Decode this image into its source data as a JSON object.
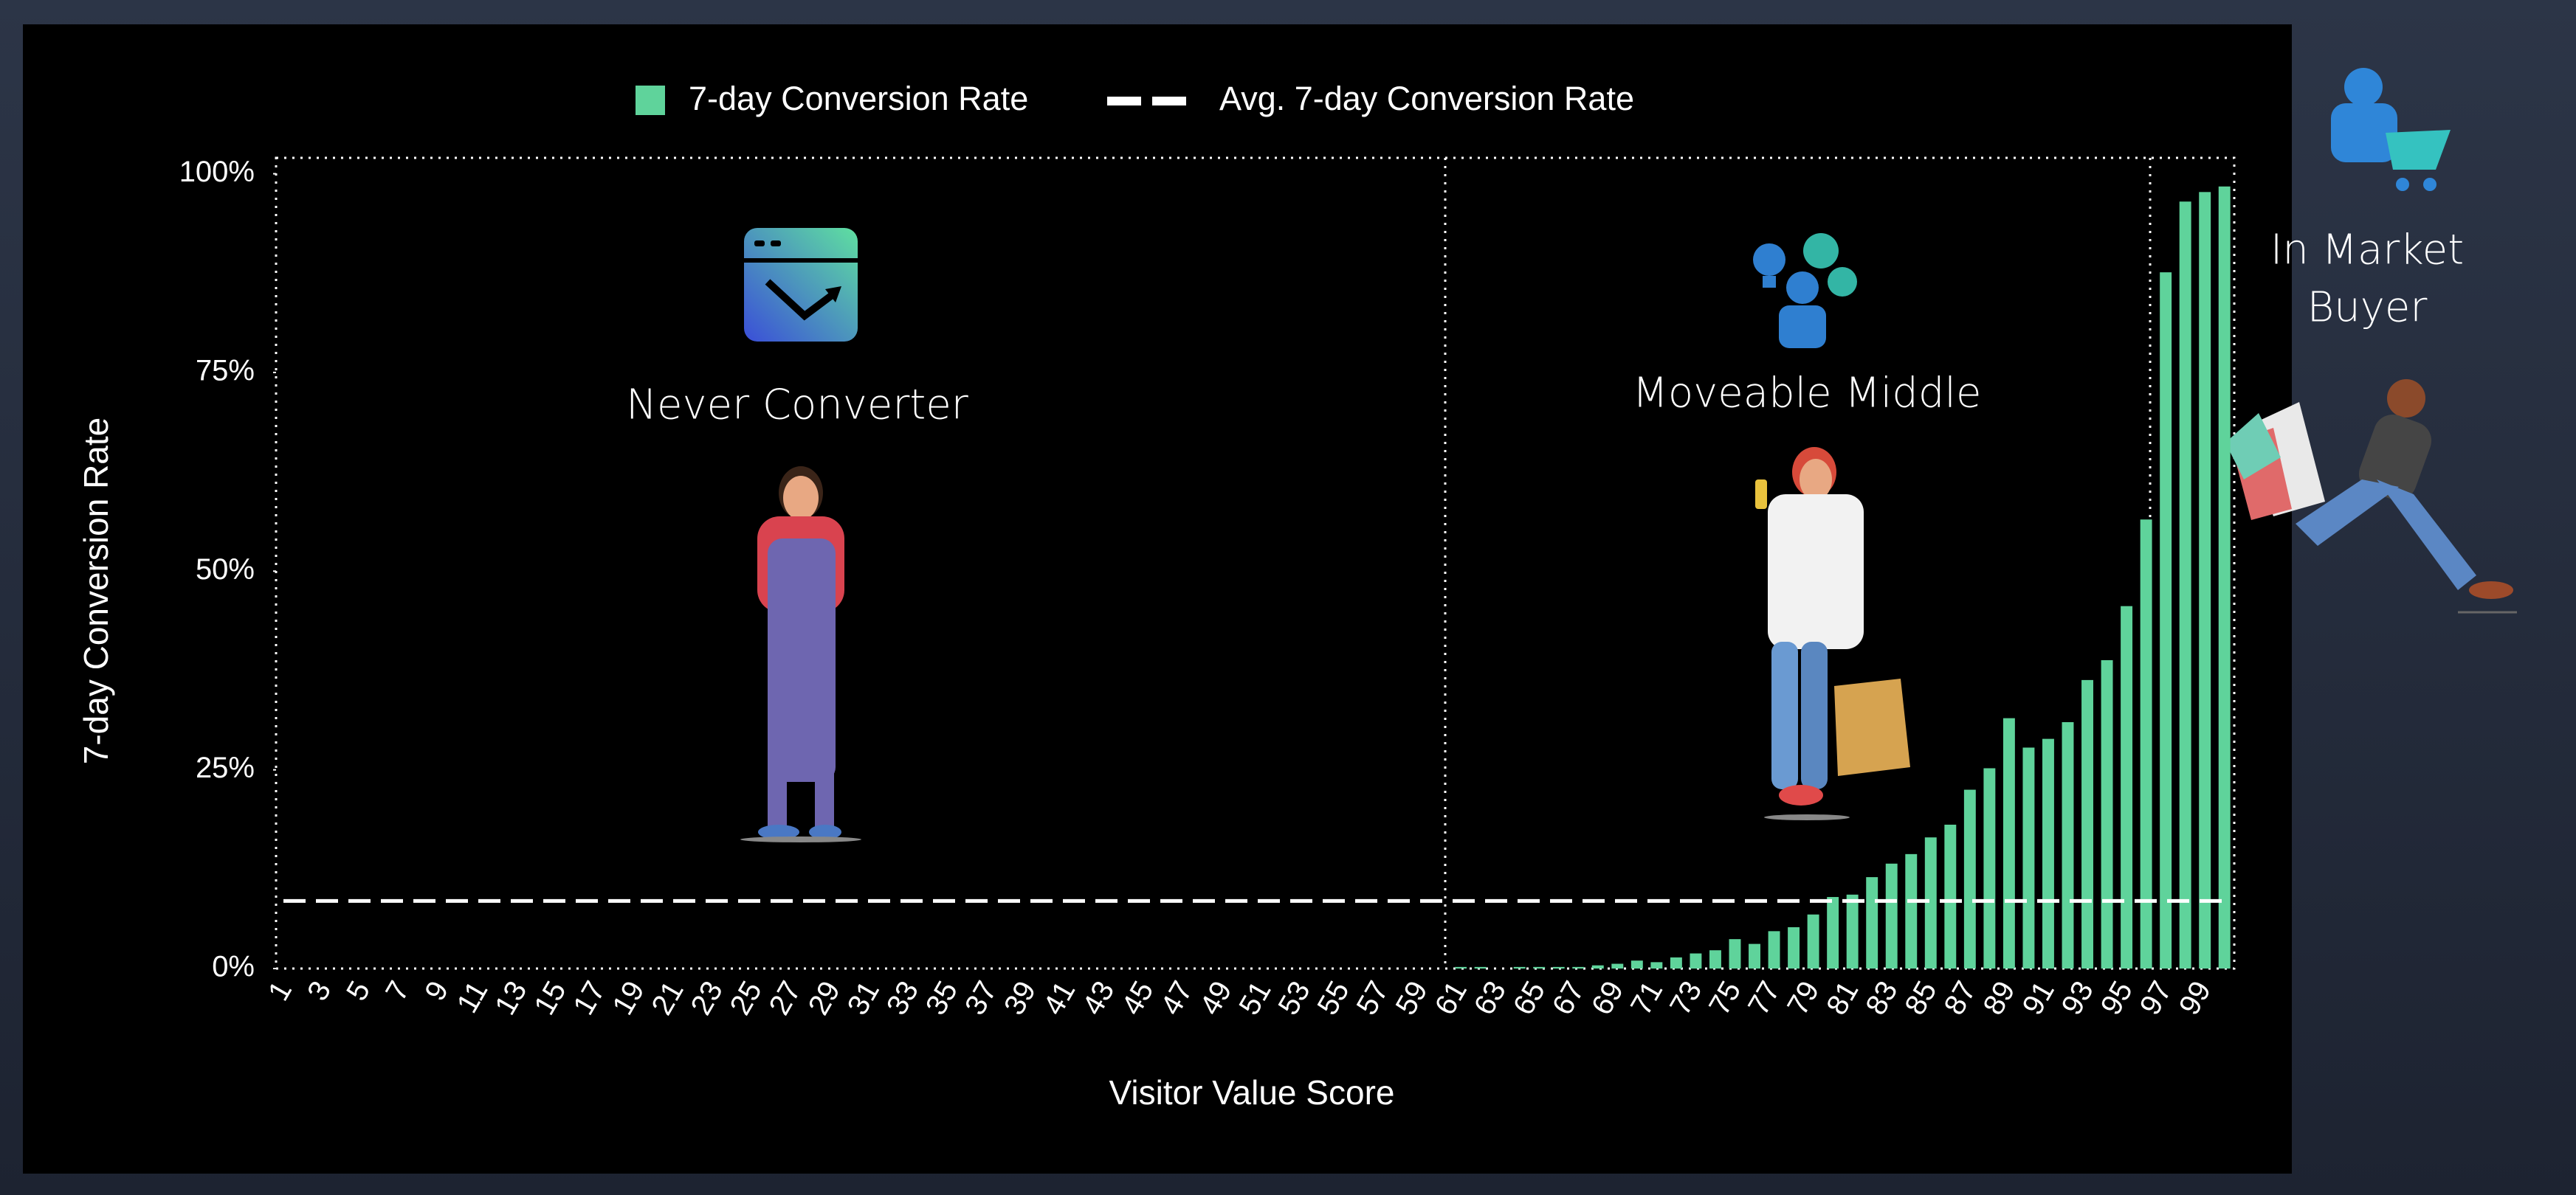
{
  "chart_data": {
    "type": "bar",
    "legend": true,
    "series": [
      {
        "name": "7-day Conversion Rate",
        "color": "#5fd39b",
        "values": [
          0,
          0,
          0,
          0,
          0,
          0,
          0,
          0,
          0,
          0,
          0,
          0,
          0,
          0,
          0,
          0,
          0,
          0,
          0,
          0,
          0,
          0,
          0,
          0,
          0,
          0,
          0,
          0,
          0,
          0,
          0,
          0,
          0,
          0,
          0,
          0,
          0,
          0,
          0,
          0,
          0,
          0,
          0,
          0,
          0,
          0,
          0,
          0,
          0,
          0,
          0,
          0,
          0,
          0,
          0,
          0,
          0,
          0,
          0,
          0,
          0.2,
          0.2,
          0,
          0.2,
          0.2,
          0.2,
          0.2,
          0.4,
          0.6,
          1.0,
          0.8,
          1.4,
          1.9,
          2.3,
          3.7,
          3.1,
          4.7,
          5.2,
          6.8,
          9.0,
          9.3,
          11.5,
          13.2,
          14.4,
          16.5,
          18.1,
          22.5,
          25.2,
          31.5,
          27.8,
          28.9,
          31.0,
          36.3,
          38.8,
          45.6,
          56.5,
          87.6,
          96.5,
          97.7,
          98.4
        ]
      }
    ],
    "average": {
      "name": "Avg. 7-day Conversion Rate",
      "color": "#ffffff",
      "value": 8.5
    },
    "categories": [
      1,
      null,
      3,
      null,
      5,
      null,
      7,
      null,
      9,
      null,
      11,
      null,
      13,
      null,
      15,
      null,
      17,
      null,
      19,
      null,
      21,
      null,
      23,
      null,
      25,
      null,
      27,
      null,
      29,
      null,
      31,
      null,
      33,
      null,
      35,
      null,
      37,
      null,
      39,
      null,
      41,
      null,
      43,
      null,
      45,
      null,
      47,
      null,
      49,
      null,
      51,
      null,
      53,
      null,
      55,
      null,
      57,
      null,
      59,
      null,
      61,
      null,
      63,
      null,
      65,
      null,
      67,
      null,
      69,
      null,
      71,
      null,
      73,
      null,
      75,
      null,
      77,
      null,
      79,
      null,
      81,
      null,
      83,
      null,
      85,
      null,
      87,
      null,
      89,
      null,
      91,
      null,
      93,
      null,
      95,
      null,
      97,
      null,
      99,
      null
    ],
    "x_label": "Visitor Value Score",
    "y_label": "7-day Conversion Rate",
    "ylim": [
      0,
      102
    ],
    "yticks": [
      {
        "value": 0,
        "label": "0%"
      },
      {
        "value": 25,
        "label": "25%"
      },
      {
        "value": 50,
        "label": "50%"
      },
      {
        "value": 75,
        "label": "75%"
      },
      {
        "value": 100,
        "label": "100%"
      }
    ],
    "annotations": [
      {
        "text": "Never Converter"
      },
      {
        "text": "Moveable Middle"
      },
      {
        "lines": [
          "In Market",
          "Buyer"
        ]
      }
    ]
  }
}
